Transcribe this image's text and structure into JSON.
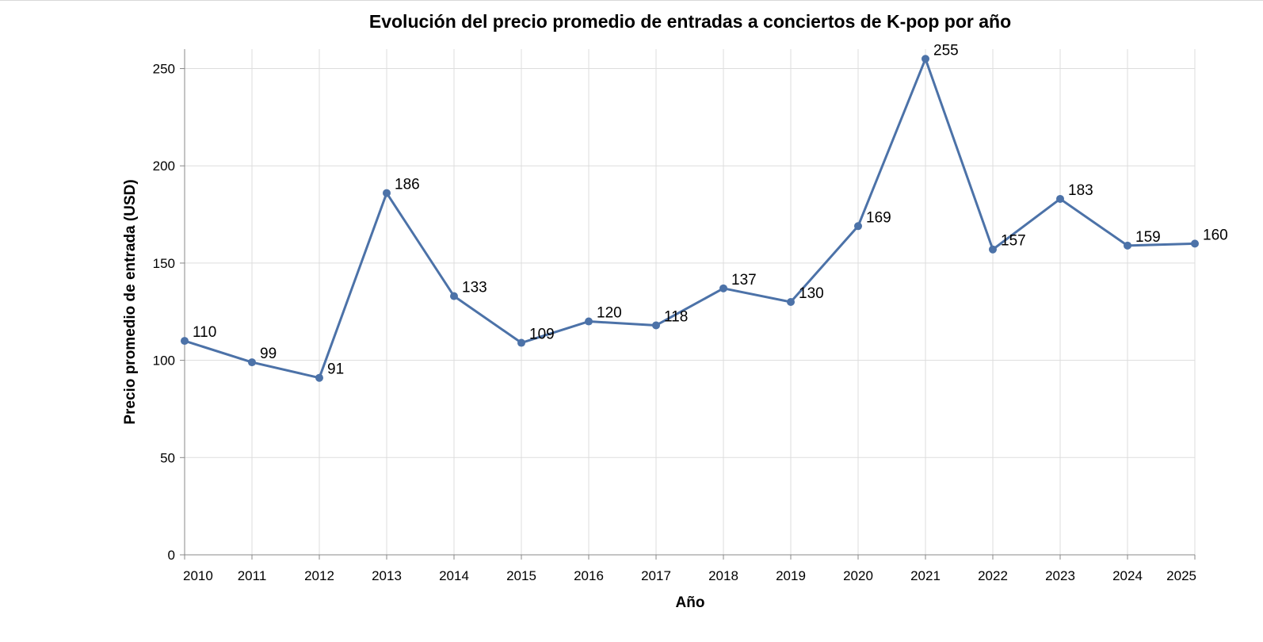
{
  "chart_data": {
    "type": "line",
    "title": "Evolución del precio promedio de entradas a conciertos de K-pop por año",
    "xlabel": "Año",
    "ylabel": "Precio promedio de entrada (USD)",
    "x": [
      "2010",
      "2011",
      "2012",
      "2013",
      "2014",
      "2015",
      "2016",
      "2017",
      "2018",
      "2019",
      "2020",
      "2021",
      "2022",
      "2023",
      "2024",
      "2025"
    ],
    "series": [
      {
        "values": [
          110,
          99,
          91,
          186,
          133,
          109,
          120,
          118,
          137,
          130,
          169,
          255,
          157,
          183,
          159,
          160
        ]
      }
    ],
    "ylim": [
      0,
      260
    ],
    "yticks": [
      0,
      50,
      100,
      150,
      200,
      250
    ],
    "grid": true,
    "legend": "none",
    "data_labels": true,
    "colors": {
      "line": "#4c72a8",
      "grid": "#dddddd",
      "axis": "#888888"
    }
  }
}
